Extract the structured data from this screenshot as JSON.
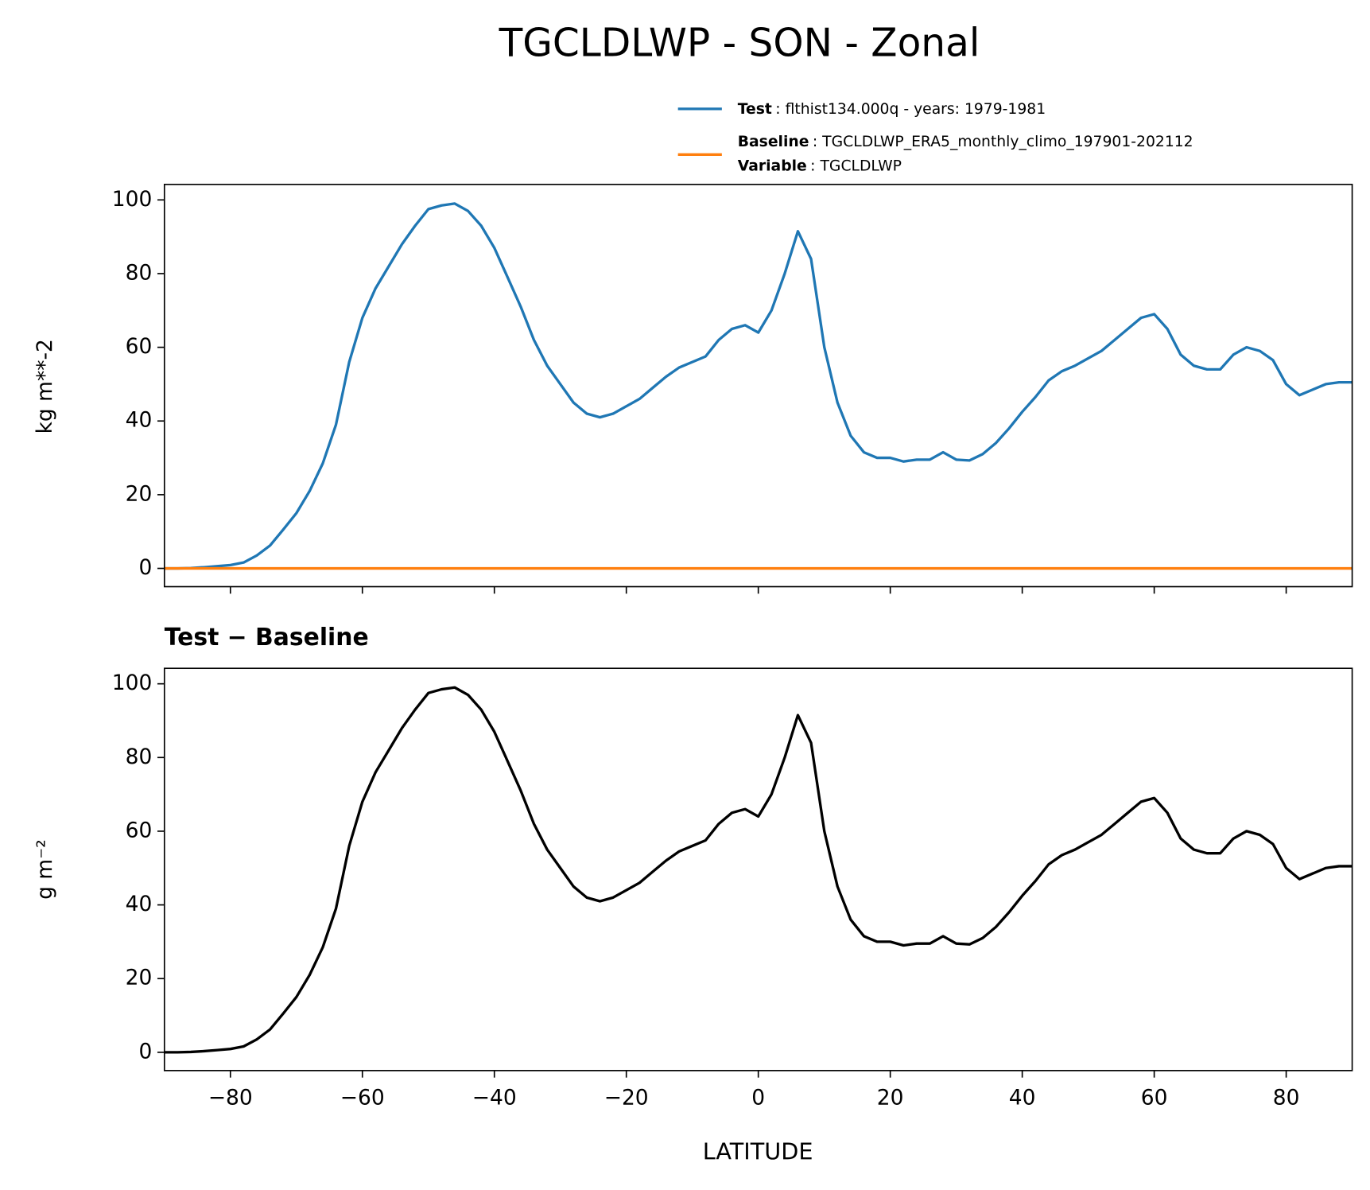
{
  "chart_data": [
    {
      "type": "line",
      "title": "TGCLDLWP - SON - Zonal",
      "ylabel": "kg m**-2",
      "x": [
        -90,
        -88,
        -86,
        -84,
        -82,
        -80,
        -78,
        -76,
        -74,
        -72,
        -70,
        -68,
        -66,
        -64,
        -62,
        -60,
        -58,
        -56,
        -54,
        -52,
        -50,
        -48,
        -46,
        -44,
        -42,
        -40,
        -38,
        -36,
        -34,
        -32,
        -30,
        -28,
        -26,
        -24,
        -22,
        -20,
        -18,
        -16,
        -14,
        -12,
        -10,
        -8,
        -6,
        -4,
        -2,
        0,
        2,
        4,
        6,
        8,
        10,
        12,
        14,
        16,
        18,
        20,
        22,
        24,
        26,
        28,
        30,
        32,
        34,
        36,
        38,
        40,
        42,
        44,
        46,
        48,
        50,
        52,
        54,
        56,
        58,
        60,
        62,
        64,
        66,
        68,
        70,
        72,
        74,
        76,
        78,
        80,
        82,
        84,
        86,
        88,
        90
      ],
      "series": [
        {
          "name": "Test",
          "detail": ": flthist134.000q - years: 1979-1981",
          "color": "#1f77b4",
          "values": [
            0,
            0,
            0.1,
            0.3,
            0.6,
            0.9,
            1.6,
            3.5,
            6.2,
            10.5,
            15,
            21,
            28.5,
            39,
            56,
            68,
            76,
            82,
            88,
            93,
            97.5,
            98.5,
            99,
            97,
            93,
            87,
            79,
            71,
            62,
            55,
            50,
            45,
            42,
            41,
            42,
            44,
            46,
            49,
            52,
            54.5,
            56,
            57.5,
            62,
            65,
            66,
            64,
            70,
            80,
            91.5,
            84,
            60,
            45,
            36,
            31.5,
            30,
            30,
            29,
            29.5,
            29.5,
            31.5,
            29.5,
            29.3,
            31,
            34,
            38,
            42.5,
            46.5,
            51,
            53.5,
            55,
            57,
            59,
            62,
            65,
            68,
            69,
            65,
            58,
            55,
            54,
            54,
            58,
            60,
            59,
            56.5,
            50,
            47,
            48.5,
            50,
            50.5,
            50.5
          ]
        },
        {
          "name": "Baseline",
          "detail": ": TGCLDLWP_ERA5_monthly_climo_197901-202112",
          "color": "#ff7f0e",
          "values": [
            0,
            0,
            0,
            0,
            0,
            0,
            0,
            0,
            0,
            0,
            0,
            0,
            0,
            0,
            0,
            0,
            0,
            0,
            0,
            0,
            0,
            0,
            0,
            0,
            0,
            0,
            0,
            0,
            0,
            0,
            0,
            0,
            0,
            0,
            0,
            0,
            0,
            0,
            0,
            0,
            0,
            0,
            0,
            0,
            0,
            0,
            0,
            0,
            0,
            0,
            0,
            0,
            0,
            0,
            0,
            0,
            0,
            0,
            0,
            0,
            0,
            0,
            0,
            0,
            0,
            0,
            0,
            0,
            0,
            0,
            0,
            0,
            0,
            0,
            0,
            0,
            0,
            0,
            0,
            0,
            0,
            0,
            0,
            0,
            0,
            0,
            0,
            0,
            0,
            0,
            0
          ]
        }
      ],
      "legend_note": {
        "name": "Variable",
        "detail": ": TGCLDLWP"
      },
      "xlim": [
        -90,
        90
      ],
      "ylim": [
        -4.96,
        104.2
      ],
      "yticks": [
        0,
        20,
        40,
        60,
        80,
        100
      ]
    },
    {
      "type": "line",
      "title": "Test − Baseline",
      "ylabel": "g m⁻²",
      "xlabel": "LATITUDE",
      "x": [
        -90,
        -88,
        -86,
        -84,
        -82,
        -80,
        -78,
        -76,
        -74,
        -72,
        -70,
        -68,
        -66,
        -64,
        -62,
        -60,
        -58,
        -56,
        -54,
        -52,
        -50,
        -48,
        -46,
        -44,
        -42,
        -40,
        -38,
        -36,
        -34,
        -32,
        -30,
        -28,
        -26,
        -24,
        -22,
        -20,
        -18,
        -16,
        -14,
        -12,
        -10,
        -8,
        -6,
        -4,
        -2,
        0,
        2,
        4,
        6,
        8,
        10,
        12,
        14,
        16,
        18,
        20,
        22,
        24,
        26,
        28,
        30,
        32,
        34,
        36,
        38,
        40,
        42,
        44,
        46,
        48,
        50,
        52,
        54,
        56,
        58,
        60,
        62,
        64,
        66,
        68,
        70,
        72,
        74,
        76,
        78,
        80,
        82,
        84,
        86,
        88,
        90
      ],
      "series": [
        {
          "color": "#000000",
          "values": [
            0,
            0,
            0.1,
            0.3,
            0.6,
            0.9,
            1.6,
            3.5,
            6.2,
            10.5,
            15,
            21,
            28.5,
            39,
            56,
            68,
            76,
            82,
            88,
            93,
            97.5,
            98.5,
            99,
            97,
            93,
            87,
            79,
            71,
            62,
            55,
            50,
            45,
            42,
            41,
            42,
            44,
            46,
            49,
            52,
            54.5,
            56,
            57.5,
            62,
            65,
            66,
            64,
            70,
            80,
            91.5,
            84,
            60,
            45,
            36,
            31.5,
            30,
            30,
            29,
            29.5,
            29.5,
            31.5,
            29.5,
            29.3,
            31,
            34,
            38,
            42.5,
            46.5,
            51,
            53.5,
            55,
            57,
            59,
            62,
            65,
            68,
            69,
            65,
            58,
            55,
            54,
            54,
            58,
            60,
            59,
            56.5,
            50,
            47,
            48.5,
            50,
            50.5,
            50.5
          ]
        }
      ],
      "xlim": [
        -90,
        90
      ],
      "ylim": [
        -4.96,
        104.2
      ],
      "yticks": [
        0,
        20,
        40,
        60,
        80,
        100
      ],
      "xticks": [
        {
          "value": -80,
          "label": "−80"
        },
        {
          "value": -60,
          "label": "−60"
        },
        {
          "value": -40,
          "label": "−40"
        },
        {
          "value": -20,
          "label": "−20"
        },
        0,
        20,
        40,
        60,
        80
      ]
    }
  ]
}
